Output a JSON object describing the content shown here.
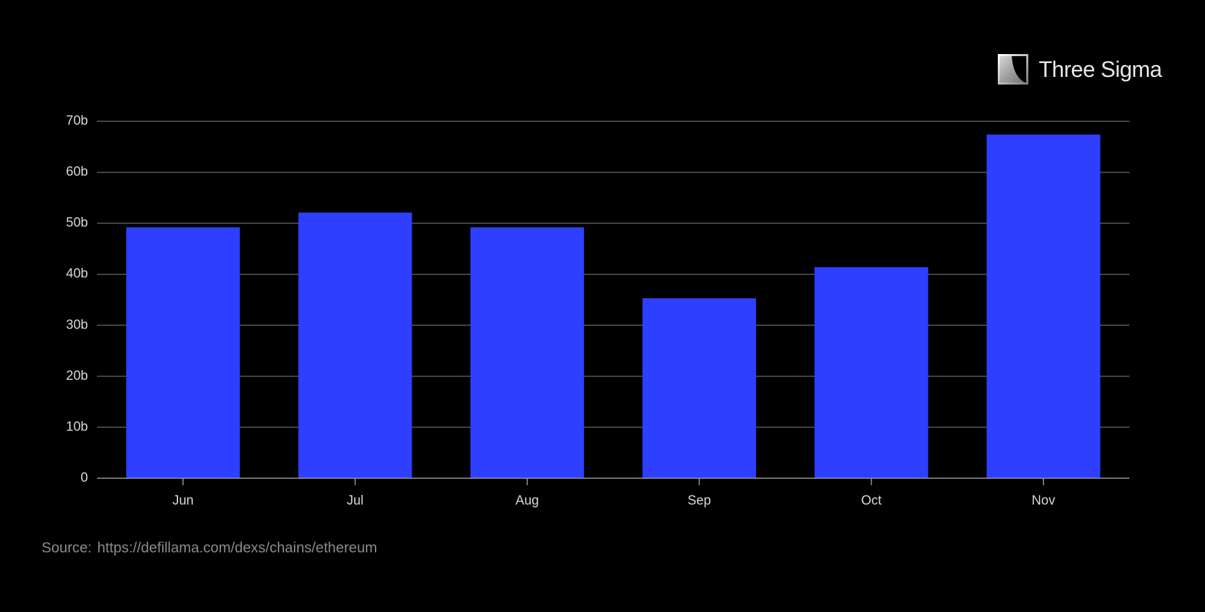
{
  "brand": {
    "name": "Three Sigma",
    "logo_icon": "three-sigma-logo-icon"
  },
  "source": {
    "label": "Source:",
    "url": "https://defillama.com/dexs/chains/ethereum"
  },
  "colors": {
    "background": "#000000",
    "bar": "#2e3fff",
    "gridline": "#5a5a5a",
    "text": "#d9d9d9",
    "source_text": "#8a8a8a"
  },
  "chart_data": {
    "type": "bar",
    "categories": [
      "Jun",
      "Jul",
      "Aug",
      "Sep",
      "Oct",
      "Nov"
    ],
    "values": [
      49.2,
      52.1,
      49.2,
      35.3,
      41.4,
      67.4
    ],
    "ylim": [
      0,
      70
    ],
    "yticks": [
      0,
      10,
      20,
      30,
      40,
      50,
      60,
      70
    ],
    "ytick_labels": [
      "0",
      "10b",
      "20b",
      "30b",
      "40b",
      "50b",
      "60b",
      "70b"
    ],
    "title": "",
    "xlabel": "",
    "ylabel": "",
    "grid": true,
    "legend": "none"
  }
}
